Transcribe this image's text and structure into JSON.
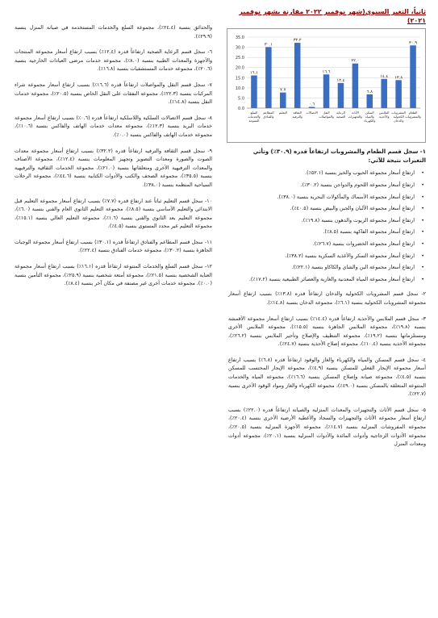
{
  "section_title": "ثانياً، التغير السنوي(شهر نوفمبر ٢٠٢٢ مقارنة بشهر نوفمبر ٢٠٢١)",
  "chart_data": {
    "type": "bar",
    "ylim": [
      0,
      35
    ],
    "yticks": [
      "0.0",
      "5.0",
      "10.0",
      "15.0",
      "20.0",
      "25.0",
      "30.0",
      "35.0"
    ],
    "categories": [
      "الطعام والمشروبات",
      "المشروبات الكحولية والدخان",
      "الملابس والأحذية",
      "السكن والمياه والكهرباء",
      "الأثاث والتجهيزات",
      "الرعاية الصحية",
      "النقل والمواصلات",
      "الاتصالات",
      "الثقافة والترفيه",
      "التعليم",
      "المطاعم والفنادق",
      "السلع والخدمات المتنوعة"
    ],
    "values": [
      30.9,
      13.8,
      14.4,
      6.8,
      22.0,
      12.4,
      16.6,
      0.6,
      32.2,
      7.7,
      30.1,
      16.1
    ],
    "value_labels": [
      "٣٠.٩",
      "١٣.٨",
      "١٤.٤",
      "٦.٨",
      "٢٢.٠",
      "١٢.٤",
      "١٦.٦",
      "٠.٦",
      "٣٢.٢",
      "٧.٧",
      "٣٠.١",
      "١٦.١"
    ],
    "colors": {
      "bar": "#3a6ec2"
    }
  },
  "chart_caption": "١- سجل قسم الطعام والمشروبات ارتفاعاً قدره (٣٠.٩٪) وتأتي التغيرات نتيجة للآتي:",
  "food_bullets": [
    "ارتفاع أسعار مجموعة الحبوب والخبز بنسبة (٥٢.١٪).",
    "ارتفاع أسعار مجموعة اللحوم والدواجن بنسبة (٣٠.٢٪).",
    "ارتفاع أسعار مجموعة الأسماك والمأكولات البحرية بنسبة (٣٨.٠٪).",
    "ارتفاع أسعار مجموعة الألبان والجبن والبيض بنسبة (٤٠.٥٪).",
    "ارتفاع أسعار مجموعة الزيوت والدهون بنسبة (١٩.٨٪).",
    "ارتفاع أسعار مجموعة الفاكهة بنسبة (٨.٥٪).",
    "ارتفاع أسعار مجموعة الخضروات بنسبة (٢٦.٧٪).",
    "ارتفاع أسعار مجموعة السكر والأغذية السكرية بنسبة (٣٨.٢٪).",
    "ارتفاع أسعار مجموعة البن والشاي والكاكاو بنسبة (٢٢.١٪).",
    "ارتفاع أسعار مجموعة المياه المعدنية والغازية والعصائر الطبيعية بنسبة (١٧.٢٪)."
  ],
  "right_paras": [
    "٢- سجل قسم المشروبات الكحولية والدخان ارتفاعاً قدره (١٣.٨٪) بسبب ارتفاع أسعار مجموعة المشروبات الكحولية بنسبة (٦.١٪)، مجموعة الدخان بنسبة (١٤.٨٪).",
    "٣- سجل قسم الملابس والأحذية ارتفاعاً قدره (١٤.٤٪) بسبب ارتفاع أسعار مجموعة الأقمشة بنسبة (١٩.٨٪)، مجموعة الملابس الجاهزة بنسبة (١٥.٥٪)، مجموعة الملابس الأخرى ومستلزماتها بنسبة (١٩.٢٪)، مجموعة التنظيف والإصلاح وتأجير الملابس بنسبة (٢٦.٢٪)، مجموعة الأحذية بنسبة (١٠.٤٪)، مجموعة إصلاح الأحذية بنسبة (٢٤.٧٪).",
    "٤- سجل قسم المسكن والمياه والكهرباء والغاز والوقود ارتفاعاً قدره (٦.٨٪) بسبب ارتفاع أسعار مجموعة الإيجار الفعلي للمسكن بنسبة (٤.٩٪)، مجموعة الإيجار المحتسب للمسكن بنسبة (٤.٥٪)، مجموعة صيانة وإصلاح المسكن بنسبة (١٦.٦٪)، مجموعة المياه والخدمات المتنوعة المتعلقة بالمسكن بنسبة (٤٩.٠٪)، مجموعة الكهرباء والغاز ومواد الوقود الأخرى بنسبة (٢٢.٧٪).",
    "٥- سجل قسم الأثاث والتجهيزات والمعدات المنزلية والصيانة ارتفاعاً قدره (٢٢.٠٪) بسبب ارتفاع أسعار مجموعة الأثاث والتجهيزات والسجاد والأغطية الأرضية الأخرى بنسبة (٢٠.٤٪)، مجموعة المفروشات المنزلية بنسبة (١٤.٧٪)، مجموعة الأجهزة المنزلية بنسبة (٢٠.٥٪)، مجموعة الأدوات الزجاجية وأدوات المائدة والأدوات المنزلية بنسبة (٢٠.١٪)، مجموعة أدوات ومعدات المنزل"
  ],
  "left_intro": "والحدائق بنسبة (٢٤.٤٪)، مجموعة السلع والخدمات المستخدمة في صيانة المنزل بنسبة (٢٩.٩٪).",
  "left_paras": [
    "٦- سجل قسم الرعاية الصحية ارتفاعاً قدره (١٢.٤٪) بسبب ارتفاع أسعار مجموعة المنتجات والأجهزة والمعدات الطبية بنسبة (٨.٠٪)، مجموعة خدمات مرضى العيادات الخارجية بنسبة (٢٠.٦٪)، مجموعة خدمات المستشفيات بنسبة (١٦.٨٪).",
    "٧- سجل قسم النقل والمواصلات ارتفاعاً قدره (١٦.٦٪) بسبب ارتفاع أسعار مجموعة شراء المركبات بنسبة (٢٢.٣٪)، مجموعة النفقات على النقل الخاص بنسبة (٢٠.٥٪)، مجموعة خدمات النقل بنسبة (١٤.٨٪).",
    "٨- سجل قسم الاتصالات السلكية واللاسلكية ارتفاعاً قدره (٠.٦٪) بسبب ارتفاع أسعار مجموعة خدمات البريد بنسبة (١٢.٣٪)، مجموعة معدات خدمات الهاتف والفاكس بنسبة (١٠.٦٪)، مجموعة خدمات الهاتف والفاكس بنسبة (٠.٠٪).",
    "٩- سجل قسم الثقافة والترفيه ارتفاعاً قدره (٣٢.٢٪) بسبب ارتفاع أسعار مجموعة معدات الصوت والصورة ومعدات التصوير وتجهيز المعلومات بنسبة (١٢.٤٪)، مجموعة الأصناف والمعدات الترفيهية الأخرى ومتعلقاتها بنسبة (٢١.٠٪)، مجموعة الخدمات الثقافية والترفيهية بنسبة (٣٥.٥٪)، مجموعة الصحف والكتب والأدوات الكتابية بنسبة (٤٤.٦٪)، مجموعة الرحلات السياحية المنظمة بنسبة (٣٨.٠٪).",
    "١٠- سجل قسم التعليم ثباتاً عند ارتفاع قدره (٧.٧٪) بسبب ارتفاع أسعار مجموعة التعليم قبل الابتدائي والتعليم الأساسي بنسبة (٨.٥٪)، مجموعة التعليم الثانوي العام والفني بنسبة (٦.٠٪)، مجموعة التعليم بعد الثانوي والفني بنسبة (١.٦٪)، مجموعة التعليم العالي بنسبة (١٥.١٪)، مجموعة التعليم غير محدد المستوى بنسبة (٤.٥٪).",
    "١١- سجل قسم المطاعم والفنادق ارتفاعاً قدره (٣٠.١٪) بسبب ارتفاع أسعار مجموعة الوجبات الجاهزة بنسبة (٣٠.٢٪)، مجموعة خدمات الفنادق بنسبة (٢٢.٤٪).",
    "١٢- سجل قسم السلع والخدمات المتنوعة ارتفاعاً قدره (١٦.١٪) بسبب ارتفاع أسعار مجموعة العناية الشخصية بنسبة (٢١.٥٪)، مجموعة أمتعة شخصية بنسبة (٢٥.٩٪)، مجموعة التأمين بنسبة (٠.٠٪)، مجموعة خدمات أخرى غير مصنفة في مكان آخر بنسبة (٨.٤٪)."
  ]
}
